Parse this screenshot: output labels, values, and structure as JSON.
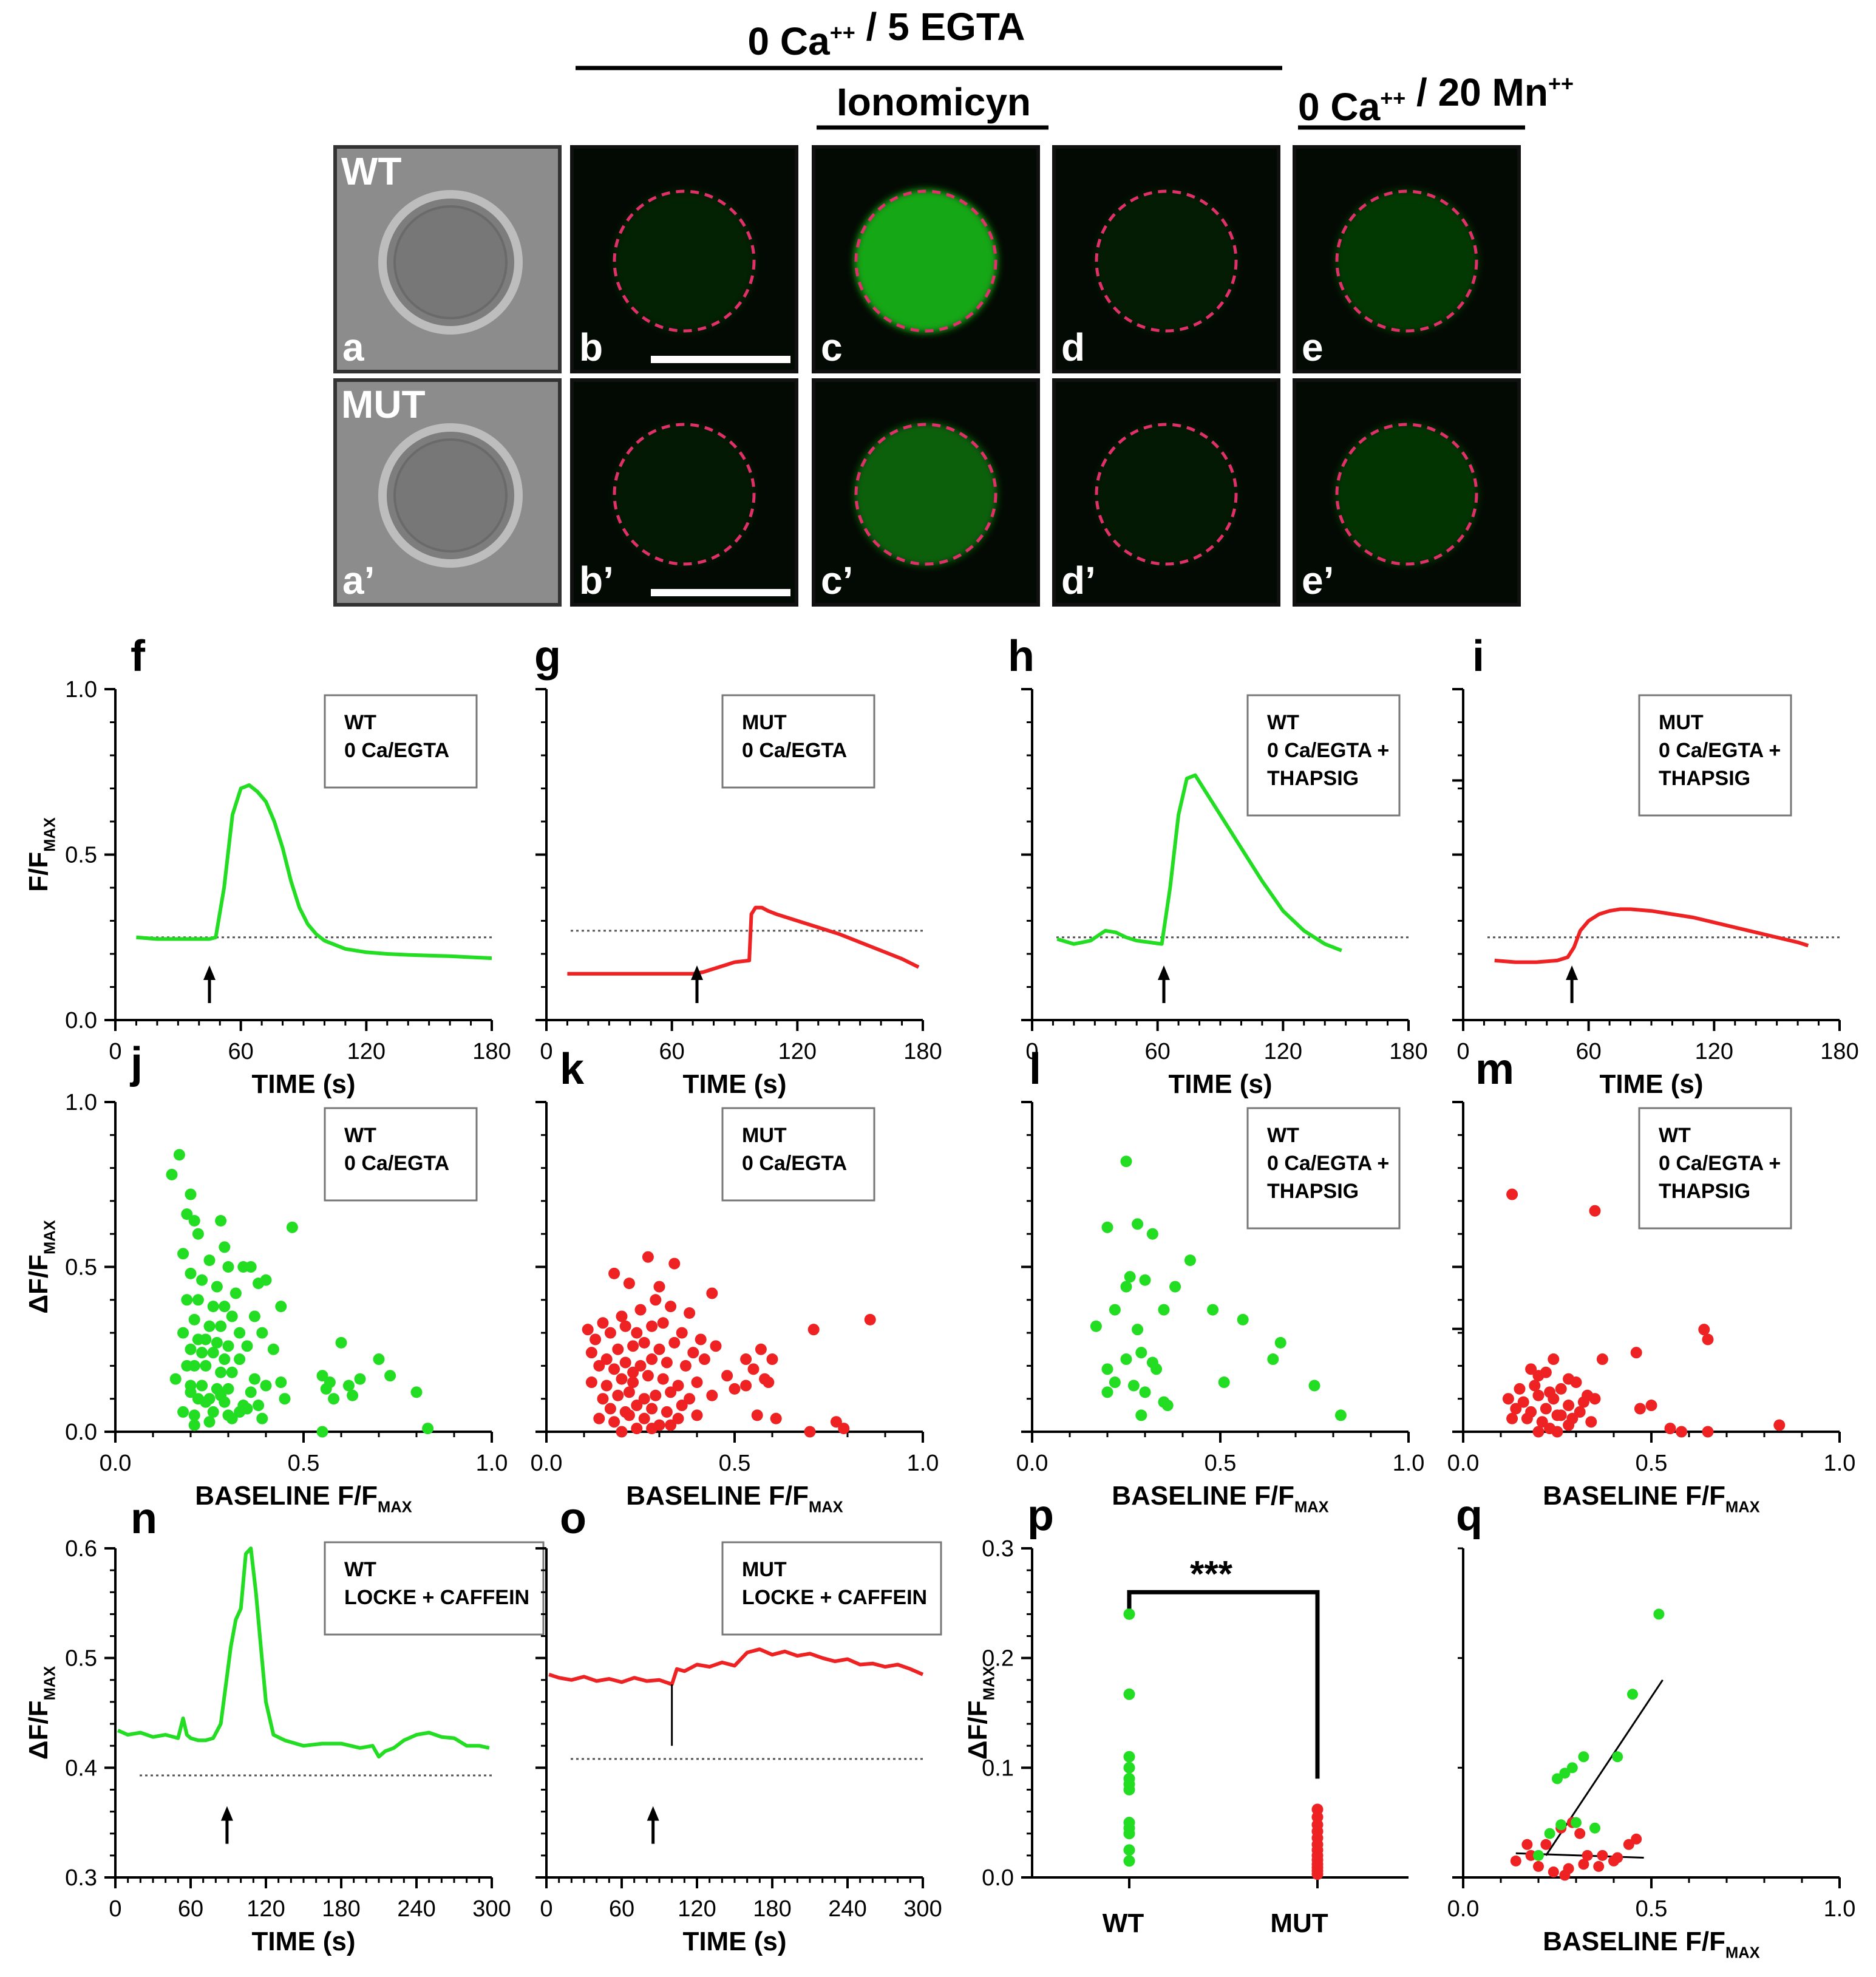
{
  "header": {
    "condition": "0 Ca++ / 5 EGTA",
    "ionomycin": "Ionomicyn",
    "manganese": "0 Ca++ / 20 Mn++"
  },
  "image_rows": [
    {
      "label": "WT",
      "panels": [
        "a",
        "b",
        "c",
        "d",
        "e"
      ],
      "brightness": [
        0,
        0.15,
        1.0,
        0.12,
        0.3
      ]
    },
    {
      "label": "MUT",
      "panels": [
        "a’",
        "b’",
        "c’",
        "d’",
        "e’"
      ],
      "brightness": [
        0,
        0.1,
        0.55,
        0.1,
        0.28
      ]
    }
  ],
  "colors": {
    "wt": "#22dd22",
    "mut": "#ee2222",
    "outline": "#e0306a",
    "cell_bg": "#030903"
  },
  "chart_data": [
    {
      "panel": "f",
      "type": "line",
      "legend": [
        "WT",
        "0 Ca/EGTA"
      ],
      "color": "wt",
      "xlabel": "TIME (s)",
      "ylabel": "F/FMAX",
      "xlim": [
        0,
        180
      ],
      "ylim": [
        0,
        1
      ],
      "xticks": [
        0,
        60,
        120,
        180
      ],
      "yticks": [
        "0.0",
        "0.5",
        "1.0"
      ],
      "baseline": 0.25,
      "arrow_x": 45,
      "x": [
        10,
        20,
        30,
        40,
        45,
        48,
        52,
        56,
        60,
        64,
        68,
        72,
        76,
        80,
        84,
        88,
        92,
        96,
        100,
        110,
        120,
        130,
        140,
        150,
        160,
        170,
        180
      ],
      "y": [
        0.25,
        0.245,
        0.245,
        0.245,
        0.245,
        0.25,
        0.4,
        0.62,
        0.7,
        0.71,
        0.69,
        0.66,
        0.6,
        0.52,
        0.42,
        0.34,
        0.29,
        0.26,
        0.24,
        0.215,
        0.205,
        0.2,
        0.197,
        0.195,
        0.193,
        0.19,
        0.187
      ]
    },
    {
      "panel": "g",
      "type": "line",
      "legend": [
        "MUT",
        "0 Ca/EGTA"
      ],
      "color": "mut",
      "xlabel": "TIME (s)",
      "ylabel": "",
      "xlim": [
        0,
        180
      ],
      "ylim": [
        0,
        1
      ],
      "xticks": [
        0,
        60,
        120,
        180
      ],
      "yticks": [],
      "baseline": 0.27,
      "arrow_x": 72,
      "x": [
        10,
        20,
        30,
        40,
        50,
        60,
        70,
        75,
        80,
        85,
        90,
        97,
        98,
        100,
        103,
        106,
        110,
        120,
        130,
        140,
        150,
        160,
        170,
        178
      ],
      "y": [
        0.14,
        0.14,
        0.14,
        0.14,
        0.14,
        0.14,
        0.14,
        0.145,
        0.155,
        0.165,
        0.175,
        0.18,
        0.32,
        0.34,
        0.34,
        0.33,
        0.32,
        0.3,
        0.28,
        0.26,
        0.235,
        0.21,
        0.185,
        0.16
      ]
    },
    {
      "panel": "h",
      "type": "line",
      "legend": [
        "WT",
        "0 Ca/EGTA +",
        "THAPSIG"
      ],
      "color": "wt",
      "xlabel": "TIME (s)",
      "ylabel": "",
      "xlim": [
        0,
        180
      ],
      "ylim": [
        0,
        1
      ],
      "xticks": [
        0,
        60,
        120,
        180
      ],
      "yticks": [],
      "baseline": 0.25,
      "arrow_x": 63,
      "x": [
        12,
        20,
        28,
        35,
        40,
        45,
        50,
        56,
        62,
        66,
        70,
        74,
        78,
        82,
        86,
        92,
        100,
        110,
        120,
        130,
        140,
        148
      ],
      "y": [
        0.245,
        0.23,
        0.24,
        0.27,
        0.265,
        0.25,
        0.24,
        0.235,
        0.23,
        0.4,
        0.62,
        0.73,
        0.74,
        0.7,
        0.66,
        0.6,
        0.52,
        0.42,
        0.33,
        0.27,
        0.23,
        0.21
      ]
    },
    {
      "panel": "i",
      "type": "line",
      "legend": [
        "MUT",
        "0 Ca/EGTA +",
        "THAPSIG"
      ],
      "color": "mut",
      "xlabel": "TIME (s)",
      "ylabel": "",
      "xlim": [
        0,
        180
      ],
      "ylim": [
        0,
        1
      ],
      "xticks": [
        0,
        60,
        120,
        180
      ],
      "yticks": [],
      "baseline": 0.25,
      "arrow_x": 52,
      "x": [
        15,
        25,
        35,
        45,
        50,
        53,
        56,
        60,
        65,
        70,
        75,
        80,
        90,
        100,
        110,
        120,
        130,
        140,
        150,
        160,
        165
      ],
      "y": [
        0.18,
        0.175,
        0.175,
        0.18,
        0.19,
        0.22,
        0.27,
        0.3,
        0.32,
        0.33,
        0.335,
        0.335,
        0.33,
        0.32,
        0.31,
        0.295,
        0.28,
        0.265,
        0.25,
        0.235,
        0.225
      ]
    },
    {
      "panel": "j",
      "type": "scatter",
      "legend": [
        "WT",
        "0 Ca/EGTA"
      ],
      "color": "wt",
      "xlabel": "BASELINE F/FMAX",
      "ylabel": "ΔF/FMAX",
      "xlim": [
        0,
        1
      ],
      "ylim": [
        0,
        1
      ],
      "xticks": [
        "0.0",
        "0.5",
        "1.0"
      ],
      "yticks": [
        "0.0",
        "0.5",
        "1.0"
      ],
      "x": [
        0.17,
        0.15,
        0.2,
        0.19,
        0.21,
        0.28,
        0.22,
        0.29,
        0.34,
        0.47,
        0.18,
        0.25,
        0.3,
        0.36,
        0.38,
        0.2,
        0.23,
        0.27,
        0.32,
        0.4,
        0.44,
        0.19,
        0.22,
        0.26,
        0.29,
        0.31,
        0.37,
        0.21,
        0.25,
        0.28,
        0.33,
        0.39,
        0.18,
        0.22,
        0.24,
        0.27,
        0.3,
        0.35,
        0.42,
        0.2,
        0.23,
        0.26,
        0.29,
        0.33,
        0.16,
        0.19,
        0.21,
        0.24,
        0.28,
        0.31,
        0.37,
        0.44,
        0.2,
        0.23,
        0.27,
        0.3,
        0.36,
        0.4,
        0.22,
        0.25,
        0.29,
        0.34,
        0.18,
        0.21,
        0.26,
        0.31,
        0.39,
        0.2,
        0.24,
        0.28,
        0.33,
        0.38,
        0.45,
        0.21,
        0.25,
        0.3,
        0.35,
        0.55,
        0.6,
        0.57,
        0.62,
        0.65,
        0.56,
        0.7,
        0.73,
        0.8,
        0.83,
        0.55,
        0.58,
        0.63
      ],
      "y": [
        0.84,
        0.78,
        0.72,
        0.66,
        0.64,
        0.64,
        0.6,
        0.56,
        0.5,
        0.62,
        0.54,
        0.52,
        0.5,
        0.5,
        0.45,
        0.48,
        0.46,
        0.44,
        0.42,
        0.46,
        0.38,
        0.4,
        0.4,
        0.38,
        0.38,
        0.35,
        0.35,
        0.34,
        0.32,
        0.32,
        0.3,
        0.3,
        0.3,
        0.28,
        0.28,
        0.27,
        0.26,
        0.26,
        0.25,
        0.25,
        0.24,
        0.24,
        0.22,
        0.22,
        0.16,
        0.2,
        0.2,
        0.2,
        0.18,
        0.18,
        0.16,
        0.15,
        0.14,
        0.14,
        0.13,
        0.13,
        0.12,
        0.14,
        0.1,
        0.1,
        0.09,
        0.08,
        0.06,
        0.05,
        0.06,
        0.04,
        0.04,
        0.12,
        0.09,
        0.11,
        0.06,
        0.08,
        0.1,
        0.02,
        0.03,
        0.05,
        0.07,
        0.17,
        0.27,
        0.15,
        0.14,
        0.16,
        0.13,
        0.22,
        0.17,
        0.12,
        0.01,
        0.0,
        0.1,
        0.11
      ]
    },
    {
      "panel": "k",
      "type": "scatter",
      "legend": [
        "MUT",
        "0 Ca/EGTA"
      ],
      "color": "mut",
      "xlabel": "BASELINE F/FMAX",
      "ylabel": "",
      "xlim": [
        0,
        1
      ],
      "ylim": [
        0,
        1
      ],
      "xticks": [
        "0.0",
        "0.5",
        "1.0"
      ],
      "yticks": [],
      "x": [
        0.27,
        0.34,
        0.18,
        0.22,
        0.3,
        0.44,
        0.11,
        0.15,
        0.2,
        0.25,
        0.29,
        0.33,
        0.38,
        0.13,
        0.17,
        0.21,
        0.24,
        0.28,
        0.31,
        0.36,
        0.41,
        0.12,
        0.16,
        0.19,
        0.23,
        0.26,
        0.3,
        0.34,
        0.39,
        0.45,
        0.14,
        0.18,
        0.21,
        0.25,
        0.28,
        0.32,
        0.37,
        0.42,
        0.48,
        0.12,
        0.16,
        0.2,
        0.23,
        0.27,
        0.31,
        0.35,
        0.4,
        0.15,
        0.19,
        0.22,
        0.26,
        0.29,
        0.33,
        0.38,
        0.44,
        0.5,
        0.17,
        0.21,
        0.24,
        0.28,
        0.32,
        0.36,
        0.14,
        0.18,
        0.22,
        0.26,
        0.3,
        0.35,
        0.4,
        0.2,
        0.24,
        0.28,
        0.33,
        0.23,
        0.57,
        0.6,
        0.55,
        0.58,
        0.53,
        0.61,
        0.56,
        0.71,
        0.86,
        0.7,
        0.77,
        0.79,
        0.53,
        0.59
      ],
      "y": [
        0.53,
        0.51,
        0.48,
        0.45,
        0.44,
        0.42,
        0.31,
        0.33,
        0.35,
        0.37,
        0.4,
        0.38,
        0.36,
        0.28,
        0.3,
        0.32,
        0.3,
        0.32,
        0.33,
        0.3,
        0.28,
        0.24,
        0.22,
        0.25,
        0.26,
        0.27,
        0.25,
        0.27,
        0.24,
        0.26,
        0.2,
        0.19,
        0.21,
        0.2,
        0.22,
        0.21,
        0.2,
        0.22,
        0.17,
        0.15,
        0.14,
        0.16,
        0.15,
        0.17,
        0.16,
        0.14,
        0.15,
        0.1,
        0.11,
        0.12,
        0.1,
        0.11,
        0.12,
        0.1,
        0.11,
        0.13,
        0.07,
        0.06,
        0.08,
        0.07,
        0.06,
        0.08,
        0.04,
        0.03,
        0.05,
        0.04,
        0.02,
        0.04,
        0.05,
        0.0,
        0.01,
        0.01,
        0.02,
        0.18,
        0.25,
        0.22,
        0.19,
        0.16,
        0.14,
        0.04,
        0.05,
        0.31,
        0.34,
        0.0,
        0.03,
        0.01,
        0.22,
        0.15
      ]
    },
    {
      "panel": "l",
      "type": "scatter",
      "legend": [
        "WT",
        "0 Ca/EGTA +",
        "THAPSIG"
      ],
      "color": "wt",
      "xlabel": "BASELINE F/FMAX",
      "ylabel": "",
      "xlim": [
        0,
        1
      ],
      "ylim": [
        0,
        1
      ],
      "xticks": [
        "0.0",
        "0.5",
        "1.0"
      ],
      "yticks": [],
      "x": [
        0.25,
        0.28,
        0.2,
        0.32,
        0.42,
        0.26,
        0.3,
        0.38,
        0.25,
        0.22,
        0.35,
        0.48,
        0.17,
        0.28,
        0.56,
        0.66,
        0.29,
        0.25,
        0.32,
        0.2,
        0.33,
        0.22,
        0.3,
        0.27,
        0.35,
        0.64,
        0.51,
        0.2,
        0.36,
        0.75,
        0.82,
        0.29
      ],
      "y": [
        0.82,
        0.63,
        0.62,
        0.6,
        0.52,
        0.47,
        0.46,
        0.44,
        0.44,
        0.37,
        0.37,
        0.37,
        0.32,
        0.31,
        0.34,
        0.27,
        0.24,
        0.22,
        0.21,
        0.19,
        0.19,
        0.15,
        0.12,
        0.14,
        0.09,
        0.22,
        0.15,
        0.12,
        0.08,
        0.14,
        0.05,
        0.05
      ]
    },
    {
      "panel": "m",
      "type": "scatter",
      "legend": [
        "WT",
        "0 Ca/EGTA +",
        "THAPSIG"
      ],
      "color": "mut",
      "xlabel": "BASELINE F/FMAX",
      "ylabel": "",
      "xlim": [
        0,
        1
      ],
      "ylim": [
        0,
        1
      ],
      "xticks": [
        "0.0",
        "0.5",
        "1.0"
      ],
      "yticks": [],
      "x": [
        0.13,
        0.35,
        0.64,
        0.65,
        0.46,
        0.37,
        0.24,
        0.18,
        0.2,
        0.22,
        0.28,
        0.15,
        0.19,
        0.23,
        0.26,
        0.3,
        0.33,
        0.12,
        0.16,
        0.2,
        0.24,
        0.28,
        0.32,
        0.35,
        0.14,
        0.18,
        0.22,
        0.26,
        0.31,
        0.13,
        0.17,
        0.21,
        0.25,
        0.29,
        0.34,
        0.5,
        0.47,
        0.2,
        0.23,
        0.65,
        0.55,
        0.58,
        0.84,
        0.28,
        0.25
      ],
      "y": [
        0.72,
        0.67,
        0.31,
        0.28,
        0.24,
        0.22,
        0.22,
        0.19,
        0.17,
        0.18,
        0.16,
        0.13,
        0.14,
        0.12,
        0.13,
        0.15,
        0.11,
        0.1,
        0.09,
        0.11,
        0.1,
        0.08,
        0.09,
        0.1,
        0.07,
        0.06,
        0.07,
        0.05,
        0.06,
        0.04,
        0.04,
        0.03,
        0.05,
        0.04,
        0.03,
        0.08,
        0.07,
        0.0,
        0.01,
        0.0,
        0.01,
        0.0,
        0.02,
        0.02,
        0.0
      ]
    },
    {
      "panel": "n",
      "type": "line",
      "legend": [
        "WT",
        "LOCKE + CAFFEIN"
      ],
      "color": "wt",
      "xlabel": "TIME (s)",
      "ylabel": "ΔF/FMAX",
      "xlim": [
        0,
        300
      ],
      "ylim": [
        0.3,
        0.6
      ],
      "xticks": [
        0,
        60,
        120,
        180,
        240,
        300
      ],
      "yticks": [
        "0.3",
        "0.4",
        "0.5",
        "0.6"
      ],
      "baseline": 0.393,
      "arrow_x": 89,
      "x": [
        2,
        10,
        20,
        30,
        40,
        50,
        54,
        57,
        60,
        66,
        72,
        78,
        84,
        88,
        92,
        96,
        100,
        104,
        108,
        112,
        116,
        120,
        126,
        135,
        150,
        165,
        180,
        195,
        205,
        210,
        215,
        222,
        230,
        240,
        250,
        260,
        270,
        280,
        290,
        298
      ],
      "y": [
        0.434,
        0.43,
        0.432,
        0.428,
        0.43,
        0.427,
        0.445,
        0.43,
        0.427,
        0.425,
        0.425,
        0.427,
        0.44,
        0.475,
        0.51,
        0.535,
        0.545,
        0.595,
        0.6,
        0.56,
        0.51,
        0.46,
        0.43,
        0.425,
        0.42,
        0.422,
        0.422,
        0.418,
        0.42,
        0.41,
        0.415,
        0.418,
        0.425,
        0.43,
        0.432,
        0.428,
        0.427,
        0.42,
        0.42,
        0.418
      ]
    },
    {
      "panel": "o",
      "type": "line",
      "legend": [
        "MUT",
        "LOCKE + CAFFEIN"
      ],
      "color": "mut",
      "xlabel": "TIME (s)",
      "ylabel": "",
      "xlim": [
        0,
        300
      ],
      "ylim": [
        0.3,
        0.6
      ],
      "xticks": [
        0,
        60,
        120,
        180,
        240,
        300
      ],
      "yticks": [],
      "baseline": 0.408,
      "arrow_x": 85,
      "marker_x": 100,
      "x": [
        2,
        10,
        20,
        30,
        40,
        50,
        60,
        70,
        80,
        90,
        100,
        104,
        110,
        120,
        130,
        140,
        150,
        160,
        170,
        180,
        190,
        200,
        210,
        220,
        230,
        240,
        250,
        260,
        270,
        280,
        290,
        300
      ],
      "y": [
        0.485,
        0.482,
        0.48,
        0.483,
        0.479,
        0.481,
        0.478,
        0.482,
        0.479,
        0.48,
        0.476,
        0.49,
        0.488,
        0.494,
        0.492,
        0.496,
        0.493,
        0.505,
        0.508,
        0.503,
        0.506,
        0.502,
        0.504,
        0.5,
        0.497,
        0.499,
        0.494,
        0.495,
        0.492,
        0.494,
        0.49,
        0.485
      ]
    },
    {
      "panel": "p",
      "type": "scatter",
      "legend": [],
      "color": "wt",
      "xlabel": "",
      "ylabel": "ΔF/FMAX",
      "categories": [
        "WT",
        "MUT"
      ],
      "ylim": [
        0,
        0.3
      ],
      "yticks": [
        "0.0",
        "0.1",
        "0.2",
        "0.3"
      ],
      "significance": "***",
      "wt_values": [
        0.24,
        0.167,
        0.11,
        0.1,
        0.09,
        0.085,
        0.08,
        0.05,
        0.045,
        0.04,
        0.025,
        0.015
      ],
      "mut_values": [
        0.062,
        0.055,
        0.048,
        0.042,
        0.036,
        0.03,
        0.025,
        0.02,
        0.016,
        0.012,
        0.009,
        0.006,
        0.003
      ]
    },
    {
      "panel": "q",
      "type": "scatter",
      "legend": [],
      "color": "wt",
      "xlabel": "BASELINE F/FMAX",
      "ylabel": "",
      "xlim": [
        0,
        1
      ],
      "ylim": [
        0,
        0.3
      ],
      "xticks": [
        "0.0",
        "0.5",
        "1.0"
      ],
      "yticks": [],
      "wt_x": [
        0.52,
        0.45,
        0.41,
        0.32,
        0.29,
        0.27,
        0.25,
        0.3,
        0.35,
        0.26,
        0.23,
        0.2
      ],
      "wt_y": [
        0.24,
        0.167,
        0.11,
        0.11,
        0.1,
        0.095,
        0.09,
        0.05,
        0.045,
        0.048,
        0.04,
        0.02
      ],
      "mut_x": [
        0.14,
        0.18,
        0.22,
        0.26,
        0.29,
        0.31,
        0.33,
        0.36,
        0.4,
        0.44,
        0.46,
        0.2,
        0.24,
        0.28,
        0.32,
        0.37,
        0.41,
        0.17,
        0.27
      ],
      "mut_y": [
        0.015,
        0.02,
        0.03,
        0.045,
        0.05,
        0.04,
        0.02,
        0.01,
        0.015,
        0.03,
        0.035,
        0.01,
        0.005,
        0.008,
        0.012,
        0.02,
        0.018,
        0.03,
        0.002
      ],
      "fit_wt": [
        [
          0.22,
          0.02
        ],
        [
          0.53,
          0.18
        ]
      ],
      "fit_mut": [
        [
          0.14,
          0.022
        ],
        [
          0.48,
          0.018
        ]
      ]
    }
  ]
}
